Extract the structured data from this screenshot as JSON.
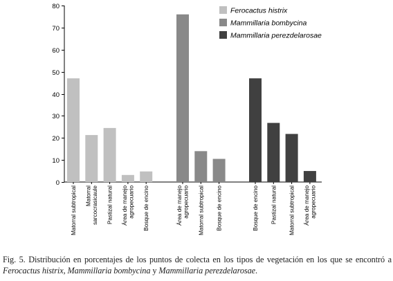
{
  "chart_data": {
    "type": "bar",
    "ylim": [
      0,
      80
    ],
    "yticks": [
      0,
      10,
      20,
      30,
      40,
      50,
      60,
      70,
      80
    ],
    "grid": false,
    "legend_position": "top-right",
    "series": [
      {
        "name": "Ferocactus histrix",
        "color": "#c0c0c0",
        "categories": [
          "Matorral subtropical",
          "Matorral sarcocrasicaule",
          "Pastizal natural",
          "Área de manejo agropecuario",
          "Bosque de encino"
        ],
        "values": [
          47,
          21.3,
          24.5,
          3.2,
          4.8
        ]
      },
      {
        "name": "Mammillaria bombycina",
        "color": "#898989",
        "categories": [
          "Área de manejo agropecuario",
          "Matorral subtropical",
          "Bosque de encino"
        ],
        "values": [
          76,
          14,
          10.5
        ]
      },
      {
        "name": "Mammillaria perezdelarosae",
        "color": "#404040",
        "categories": [
          "Bosque de encino",
          "Pastizal natural",
          "Matorral subtropical",
          "Área de manejo agropecuario"
        ],
        "values": [
          47,
          26.8,
          21.8,
          5
        ]
      }
    ]
  },
  "caption": {
    "prefix": "Fig. 5. Distribución en porcentajes de los puntos de colecta en los tipos de vegetación en los que se encontró a ",
    "sp1": "Ferocactus histrix",
    "sep1": ", ",
    "sp2": "Mammillaria bombycina",
    "sep2": " y ",
    "sp3": "Mammillaria perezdelarosae",
    "suffix": "."
  }
}
